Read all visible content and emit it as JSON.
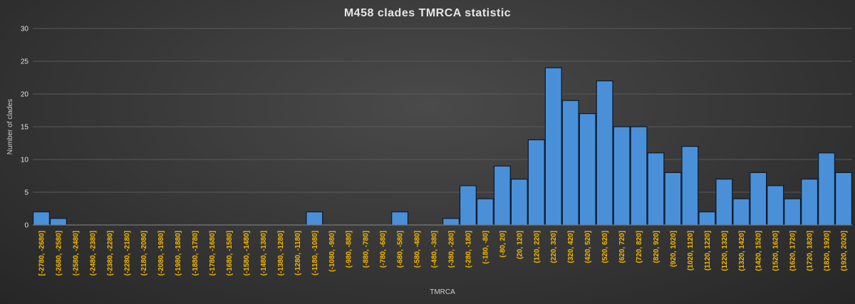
{
  "chart_data": {
    "type": "bar",
    "title": "M458 clades TMRCA statistic",
    "xlabel": "TMRCA",
    "ylabel": "Number of clades",
    "ylim": [
      0,
      30
    ],
    "yticks": [
      0,
      5,
      10,
      15,
      20,
      25,
      30
    ],
    "grid": true,
    "legend": "none",
    "categories": [
      "[-2780, -2680]",
      "(-2680, -2580]",
      "(-2580, -2480]",
      "(-2480, -2380]",
      "(-2380, -2280]",
      "(-2280, -2180]",
      "(-2180, -2080]",
      "(-2080, -1980]",
      "(-1980, -1880]",
      "(-1880, -1780]",
      "(-1780, -1680]",
      "(-1680, -1580]",
      "(-1580, -1480]",
      "(-1480, -1380]",
      "(-1380, -1280]",
      "(-1280, -1180]",
      "(-1180, -1080]",
      "(-1080, -980]",
      "(-980, -880]",
      "(-880, -780]",
      "(-780, -680]",
      "(-680, -580]",
      "(-580, -480]",
      "(-480, -380]",
      "(-380, -280]",
      "(-280, -180]",
      "(-180, -80]",
      "(-80, 20]",
      "(20, 120]",
      "(120, 220]",
      "(220, 320]",
      "(320, 420]",
      "(420, 520]",
      "(520, 620]",
      "(620, 720]",
      "(720, 820]",
      "(820, 920]",
      "(920, 1020]",
      "(1020, 1120]",
      "(1120, 1220]",
      "(1220, 1320]",
      "(1320, 1420]",
      "(1420, 1520]",
      "(1520, 1620]",
      "(1620, 1720]",
      "(1720, 1820]",
      "(1820, 1920]",
      "(1920, 2020]"
    ],
    "values": [
      2,
      1,
      0,
      0,
      0,
      0,
      0,
      0,
      0,
      0,
      0,
      0,
      0,
      0,
      0,
      0,
      2,
      0,
      0,
      0,
      0,
      2,
      0,
      0,
      1,
      6,
      4,
      9,
      7,
      13,
      24,
      19,
      17,
      22,
      15,
      15,
      11,
      8,
      12,
      2,
      7,
      4,
      8,
      6,
      4,
      7,
      11,
      8
    ],
    "colors": {
      "bar": "#4a90d9",
      "bar_outline": "#0d1a2b",
      "tick_label": "#f5b800"
    }
  }
}
